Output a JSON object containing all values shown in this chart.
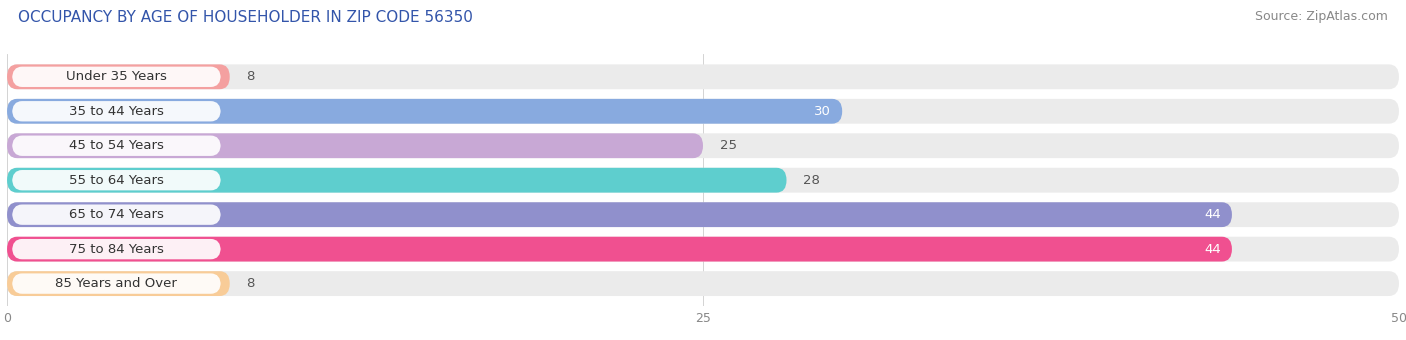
{
  "title": "OCCUPANCY BY AGE OF HOUSEHOLDER IN ZIP CODE 56350",
  "source": "Source: ZipAtlas.com",
  "categories": [
    "Under 35 Years",
    "35 to 44 Years",
    "45 to 54 Years",
    "55 to 64 Years",
    "65 to 74 Years",
    "75 to 84 Years",
    "85 Years and Over"
  ],
  "values": [
    8,
    30,
    25,
    28,
    44,
    44,
    8
  ],
  "bar_colors": [
    "#f4a0a0",
    "#88aadf",
    "#c8a8d5",
    "#5ecece",
    "#9090cc",
    "#f05090",
    "#f8cc98"
  ],
  "bg_colors": [
    "#eeeeee",
    "#eeeeee",
    "#eeeeee",
    "#eeeeee",
    "#eeeeee",
    "#eeeeee",
    "#eeeeee"
  ],
  "xlim": [
    0,
    50
  ],
  "xticks": [
    0,
    25,
    50
  ],
  "title_fontsize": 11,
  "source_fontsize": 9,
  "label_fontsize": 9.5,
  "value_fontsize": 9.5,
  "background_color": "#ffffff",
  "bar_background": "#ebebeb"
}
